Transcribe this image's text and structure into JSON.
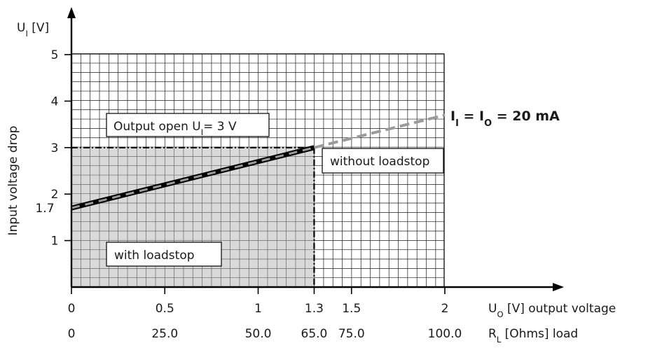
{
  "chart_data": {
    "type": "line",
    "x_axis": {
      "range": [
        0,
        2.5
      ],
      "ticks": [
        {
          "value": 0,
          "label": "0"
        },
        {
          "value": 0.5,
          "label": "0.5"
        },
        {
          "value": 1,
          "label": "1"
        },
        {
          "value": 1.3,
          "label": "1.3"
        },
        {
          "value": 1.5,
          "label": "1.5"
        },
        {
          "value": 2,
          "label": "2"
        }
      ],
      "label_prefix": "U",
      "label_sub": "O",
      "label_suffix": " [V] output voltage"
    },
    "x2_axis": {
      "ticks": [
        {
          "value": 0,
          "label": "0"
        },
        {
          "value": 0.5,
          "label": "25.0"
        },
        {
          "value": 1,
          "label": "50.0"
        },
        {
          "value": 1.3,
          "label": "65.0"
        },
        {
          "value": 1.5,
          "label": "75.0"
        },
        {
          "value": 2,
          "label": "100.0"
        }
      ],
      "label_prefix": "R",
      "label_sub": "L",
      "label_suffix": " [Ohms] load"
    },
    "y_axis": {
      "range": [
        0,
        5.5
      ],
      "ticks": [
        {
          "value": 1,
          "label": "1"
        },
        {
          "value": 1.7,
          "label": "1.7"
        },
        {
          "value": 2,
          "label": "2"
        },
        {
          "value": 3,
          "label": "3"
        },
        {
          "value": 4,
          "label": "4"
        },
        {
          "value": 5,
          "label": "5"
        }
      ],
      "label": "Input voltage drop",
      "unit_prefix": "U",
      "unit_sub": "I",
      "unit_suffix": " [V]"
    },
    "grid": true,
    "series": [
      {
        "style": "solid-with-loadstop",
        "x": [
          0,
          1.3
        ],
        "y": [
          1.7,
          3.0
        ]
      },
      {
        "style": "dashed-without-loadstop",
        "x": [
          1.3,
          2.0
        ],
        "y": [
          3.0,
          3.7
        ]
      }
    ],
    "shaded_region": {
      "x": [
        0,
        1.3
      ],
      "y": [
        0,
        3.0
      ]
    },
    "limit_lines": {
      "x": 1.3,
      "y": 3.0
    },
    "annotations": {
      "output_open_prefix": "Output open U",
      "output_open_sub": "I",
      "output_open_suffix": "= 3 V",
      "without_loadstop": "without loadstop",
      "with_loadstop": "with loadstop",
      "current_label_a": "I",
      "current_sub_a": "I",
      "current_eq": " = I",
      "current_sub_b": "O",
      "current_value": " = 20 mA"
    }
  }
}
